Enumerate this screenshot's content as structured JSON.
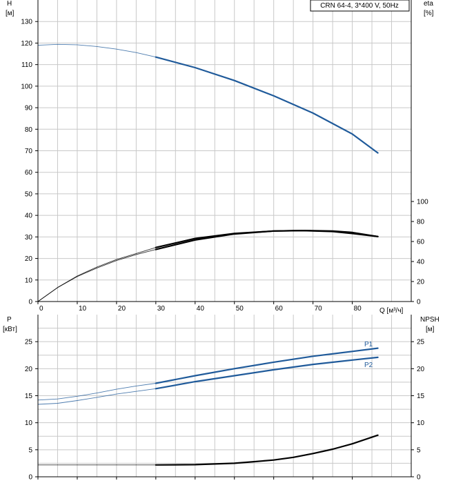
{
  "chart_data": [
    {
      "type": "line",
      "legend": "CRN 64-4, 3*400 V, 50Hz",
      "y_axis_left": {
        "label_line1": "H",
        "label_line2": "[м]",
        "range": [
          0,
          140
        ],
        "ticks": [
          0,
          10,
          20,
          30,
          40,
          50,
          60,
          70,
          80,
          90,
          100,
          110,
          120,
          130
        ]
      },
      "y_axis_right": {
        "label_line1": "eta",
        "label_line2": "[%]",
        "range": [
          0,
          100
        ],
        "ticks": [
          0,
          20,
          40,
          60,
          80,
          100
        ]
      },
      "x_axis": {
        "label": "Q [м³/ч]",
        "range": [
          0,
          95
        ],
        "ticks": [
          0,
          10,
          20,
          30,
          40,
          50,
          60,
          70,
          80
        ]
      },
      "grid": true,
      "series": [
        {
          "axis": "left",
          "color": "#1f5a9a",
          "x": [
            0,
            5,
            10,
            15,
            20,
            25,
            30,
            40,
            50,
            60,
            70,
            80,
            86.5
          ],
          "y": [
            119,
            119.4,
            119.2,
            118.4,
            117.2,
            115.6,
            113.5,
            108.6,
            102.6,
            95.5,
            87.5,
            77.8,
            69
          ]
        },
        {
          "axis": "right",
          "color": "#000000",
          "x": [
            0,
            5,
            10,
            15,
            20,
            25,
            30,
            40,
            50,
            60,
            68,
            75,
            80,
            86.5
          ],
          "y": [
            0,
            14,
            25,
            33.5,
            41,
            47,
            52,
            61.5,
            67.5,
            70.5,
            71,
            70.5,
            69,
            65
          ]
        },
        {
          "axis": "right",
          "color": "#000000",
          "x": [
            0,
            5,
            10,
            15,
            20,
            25,
            30,
            40,
            50,
            60,
            67,
            75,
            80,
            86.5
          ],
          "y": [
            0,
            14,
            25.5,
            34.5,
            42,
            48,
            54,
            63,
            68,
            70.5,
            71,
            70,
            68,
            65
          ]
        }
      ]
    },
    {
      "type": "line",
      "y_axis_left": {
        "label_line1": "P",
        "label_line2": "[кВт]",
        "range": [
          0,
          30
        ],
        "ticks": [
          0,
          5,
          10,
          15,
          20,
          25
        ]
      },
      "y_axis_right": {
        "label_line1": "NPSH",
        "label_line2": "[м]",
        "range": [
          0,
          30
        ],
        "ticks": [
          0,
          5,
          10,
          15,
          20,
          25
        ]
      },
      "x_axis": {
        "range": [
          0,
          95
        ],
        "ticks": [
          0,
          10,
          20,
          30,
          40,
          50,
          60,
          70,
          80
        ]
      },
      "grid": true,
      "series": [
        {
          "name": "P1",
          "axis": "left",
          "color": "#1f5a9a",
          "x": [
            0,
            5,
            10,
            15,
            20,
            25,
            30,
            40,
            50,
            60,
            70,
            80,
            86.5
          ],
          "y": [
            14.2,
            14.4,
            14.9,
            15.5,
            16.2,
            16.8,
            17.3,
            18.7,
            20,
            21.2,
            22.3,
            23.2,
            23.8
          ]
        },
        {
          "name": "P2",
          "axis": "left",
          "color": "#1f5a9a",
          "x": [
            0,
            5,
            10,
            15,
            20,
            25,
            30,
            40,
            50,
            60,
            70,
            80,
            86.5
          ],
          "y": [
            13.4,
            13.6,
            14.1,
            14.7,
            15.3,
            15.8,
            16.3,
            17.6,
            18.7,
            19.8,
            20.8,
            21.6,
            22.1
          ]
        },
        {
          "axis": "right",
          "color": "#000000",
          "x": [
            0,
            10,
            20,
            30,
            40,
            50,
            55,
            60,
            65,
            70,
            75,
            80,
            86.5
          ],
          "y": [
            2.2,
            2.2,
            2.2,
            2.2,
            2.25,
            2.5,
            2.8,
            3.1,
            3.6,
            4.3,
            5.1,
            6.1,
            7.7
          ]
        }
      ]
    }
  ]
}
